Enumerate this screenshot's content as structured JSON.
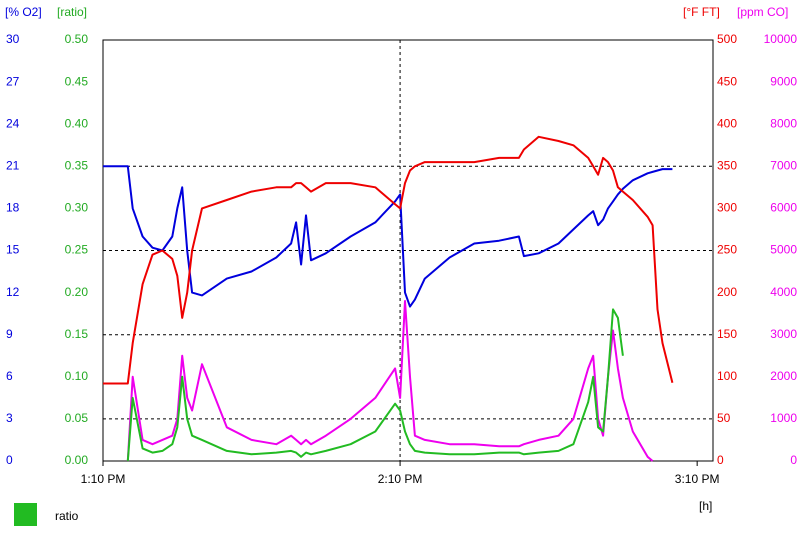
{
  "chart_data": {
    "type": "line",
    "x": [
      0,
      4,
      5,
      6,
      8,
      10,
      12,
      14,
      15,
      16,
      17,
      18,
      20,
      25,
      30,
      35,
      38,
      39,
      40,
      41,
      42,
      45,
      50,
      55,
      59,
      60,
      61,
      62,
      63,
      65,
      70,
      75,
      80,
      84,
      85,
      88,
      92,
      95,
      98,
      99,
      100,
      101,
      102,
      103,
      104,
      105,
      107,
      110,
      111,
      112,
      113,
      115
    ],
    "xlim": [
      0,
      123.2
    ],
    "xticks": [
      {
        "value": 0,
        "label": "1:10 PM"
      },
      {
        "value": 60,
        "label": "2:10 PM"
      },
      {
        "value": 120,
        "label": "3:10 PM"
      }
    ],
    "x_unit": "[h]",
    "xgrid": [
      60
    ],
    "axes": [
      {
        "label": "[% O2]",
        "color": "#0000dd",
        "side": "left",
        "lim": [
          0,
          30
        ],
        "ticks": [
          0,
          3,
          6,
          9,
          12,
          15,
          18,
          21,
          24,
          27,
          30
        ]
      },
      {
        "label": "[ratio]",
        "color": "#22aa22",
        "side": "left",
        "lim": [
          0,
          0.5
        ],
        "ticks": [
          {
            "value": 0,
            "label": "0.00"
          },
          0.05,
          {
            "value": 0.1,
            "label": "0.10"
          },
          0.15,
          {
            "value": 0.2,
            "label": "0.20"
          },
          0.25,
          {
            "value": 0.3,
            "label": "0.30"
          },
          0.35,
          {
            "value": 0.4,
            "label": "0.40"
          },
          0.45,
          {
            "value": 0.5,
            "label": "0.50"
          }
        ]
      },
      {
        "label": "[°F FT]",
        "color": "#ee0000",
        "side": "right",
        "lim": [
          0,
          500
        ],
        "ticks": [
          0,
          50,
          100,
          150,
          200,
          250,
          300,
          350,
          400,
          450,
          500
        ]
      },
      {
        "label": "[ppm CO]",
        "color": "#ee00ee",
        "side": "right",
        "lim": [
          0,
          10000
        ],
        "ticks": [
          0,
          1000,
          2000,
          3000,
          4000,
          5000,
          6000,
          7000,
          8000,
          9000,
          10000
        ]
      }
    ],
    "grid": {
      "axis": 1,
      "values": [
        0.05,
        0.15,
        0.25,
        0.35
      ]
    },
    "series": [
      {
        "axis": 0,
        "color": "#0000dd",
        "values": [
          21,
          21,
          21,
          18,
          16,
          15.2,
          15,
          16,
          18,
          19.5,
          15,
          12,
          11.8,
          13,
          13.5,
          14.5,
          15.5,
          17,
          14,
          17.5,
          14.3,
          14.8,
          16,
          17,
          18.5,
          19,
          12,
          11,
          11.5,
          13,
          14.5,
          15.5,
          15.7,
          16,
          14.6,
          14.8,
          15.5,
          16.5,
          17.5,
          17.8,
          16.8,
          17.2,
          18,
          18.5,
          19,
          19.4,
          20,
          20.5,
          20.6,
          20.7,
          20.8,
          20.8
        ]
      },
      {
        "axis": 2,
        "color": "#ee0000",
        "values": [
          92,
          92,
          92,
          140,
          210,
          245,
          250,
          240,
          220,
          170,
          200,
          250,
          300,
          310,
          320,
          325,
          325,
          330,
          330,
          325,
          320,
          330,
          330,
          325,
          305,
          300,
          330,
          345,
          350,
          355,
          355,
          355,
          360,
          360,
          370,
          385,
          380,
          375,
          360,
          350,
          340,
          360,
          355,
          345,
          325,
          320,
          310,
          290,
          280,
          180,
          140,
          93
        ]
      },
      {
        "axis": 3,
        "color": "#ee00ee",
        "values": [
          null,
          null,
          0,
          2000,
          500,
          400,
          500,
          600,
          1000,
          2500,
          1500,
          1200,
          2300,
          800,
          500,
          400,
          600,
          500,
          400,
          500,
          400,
          600,
          1000,
          1500,
          2200,
          1500,
          3800,
          2000,
          600,
          500,
          400,
          400,
          350,
          350,
          400,
          500,
          600,
          1000,
          2200,
          2500,
          1000,
          600,
          2000,
          3100,
          2200,
          1500,
          700,
          100,
          0,
          null,
          null,
          null
        ]
      },
      {
        "axis": 1,
        "name": "ratio",
        "color": "#22bb22",
        "values": [
          null,
          null,
          0,
          0.075,
          0.015,
          0.01,
          0.012,
          0.02,
          0.04,
          0.1,
          0.05,
          0.03,
          0.025,
          0.012,
          0.008,
          0.01,
          0.012,
          0.01,
          0.005,
          0.01,
          0.008,
          0.012,
          0.02,
          0.035,
          0.068,
          0.06,
          0.035,
          0.02,
          0.012,
          0.01,
          0.008,
          0.008,
          0.01,
          0.01,
          0.008,
          0.01,
          0.012,
          0.02,
          0.07,
          0.1,
          0.04,
          0.035,
          0.1,
          0.18,
          0.17,
          0.125,
          null,
          null,
          null,
          null,
          null,
          null
        ]
      }
    ]
  }
}
